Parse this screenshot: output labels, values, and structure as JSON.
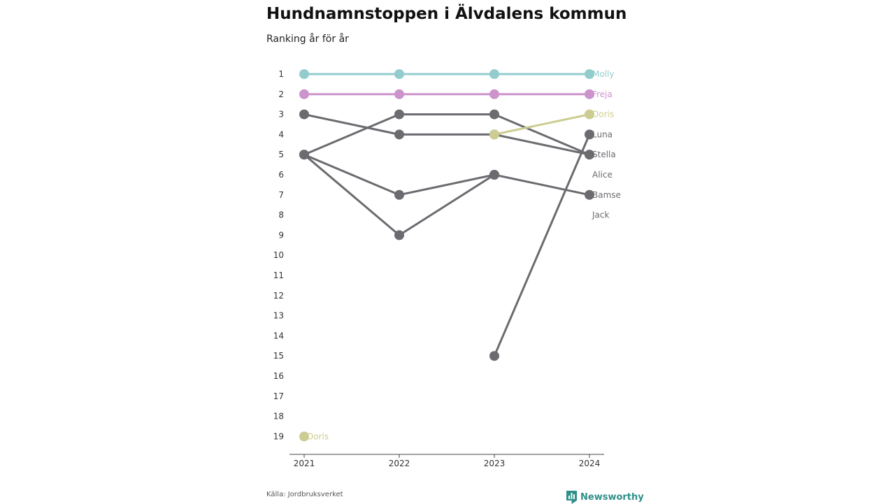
{
  "header": {
    "title": "Hundnamnstoppen i Älvdalens kommun",
    "subtitle": "Ranking år för år"
  },
  "footer": {
    "source": "Källa: Jordbruksverket",
    "brand": "Newsworthy"
  },
  "colors": {
    "Molly": "#93cccc",
    "Freja": "#cc93cc",
    "Doris": "#cccc93",
    "default": "#6b6b70",
    "axis": "#444444",
    "brand": "#2f8f8a"
  },
  "chart_data": {
    "type": "line",
    "x": [
      "2021",
      "2022",
      "2023",
      "2024"
    ],
    "y_ticks": [
      1,
      2,
      3,
      4,
      5,
      6,
      7,
      8,
      9,
      10,
      11,
      12,
      13,
      14,
      15,
      16,
      17,
      18,
      19
    ],
    "y_inverted": true,
    "ylim": [
      1,
      19
    ],
    "series": [
      {
        "name": "Molly",
        "values": [
          1,
          1,
          1,
          1
        ]
      },
      {
        "name": "Freja",
        "values": [
          2,
          2,
          2,
          2
        ]
      },
      {
        "name": "Doris",
        "values": [
          19,
          null,
          4,
          3
        ]
      },
      {
        "name": "Luna",
        "values": [
          null,
          null,
          15,
          4
        ]
      },
      {
        "name": "Stella",
        "values": [
          3,
          4,
          4,
          5
        ]
      },
      {
        "name": "Alice",
        "values": [
          5,
          3,
          3,
          5
        ]
      },
      {
        "name": "Bamse",
        "values": [
          5,
          7,
          6,
          7
        ]
      },
      {
        "name": "Jack",
        "values": [
          5,
          9,
          6,
          null
        ]
      }
    ],
    "end_labels": [
      "Molly",
      "Freja",
      "Doris",
      "Luna",
      "Stella",
      "Alice",
      "Bamse",
      "Jack"
    ],
    "start_label": "Doris"
  }
}
